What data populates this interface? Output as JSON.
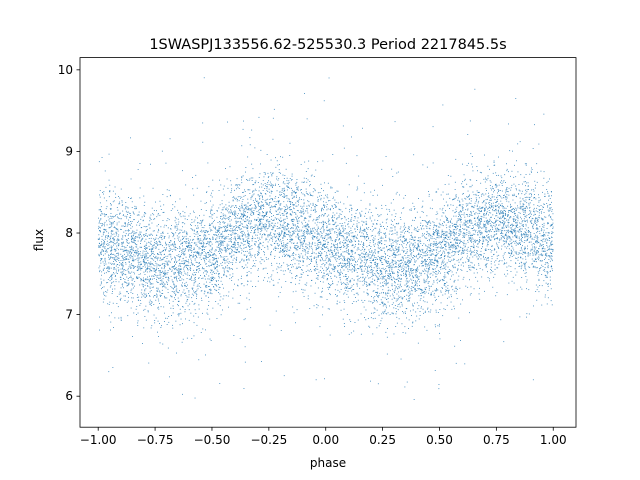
{
  "chart_data": {
    "type": "scatter",
    "title": "1SWASPJ133556.62-525530.3 Period 2217845.5s",
    "xlabel": "phase",
    "ylabel": "flux",
    "xlim": [
      -1.08,
      1.1
    ],
    "ylim": [
      5.62,
      10.15
    ],
    "xticks": [
      -1.0,
      -0.75,
      -0.5,
      -0.25,
      0.0,
      0.25,
      0.5,
      0.75,
      1.0
    ],
    "xtick_labels": [
      "−1.00",
      "−0.75",
      "−0.50",
      "−0.25",
      "0.00",
      "0.25",
      "0.50",
      "0.75",
      "1.00"
    ],
    "yticks": [
      6,
      7,
      8,
      9,
      10
    ],
    "ytick_labels": [
      "6",
      "7",
      "8",
      "9",
      "10"
    ],
    "grid": false,
    "legend": "none",
    "marker_color": "#1f77b4",
    "point_count": 9000,
    "profile": {
      "description_of_trend_in_data_units": "phase-folded light curve, two cycles over [-1,1]",
      "phase": [
        -1.0,
        -0.875,
        -0.75,
        -0.625,
        -0.5,
        -0.375,
        -0.25,
        -0.125,
        0.0,
        0.125,
        0.25,
        0.375,
        0.5,
        0.625,
        0.75,
        0.875,
        1.0
      ],
      "mean_flux": [
        7.85,
        7.75,
        7.62,
        7.6,
        7.75,
        8.05,
        8.15,
        8.05,
        7.9,
        7.75,
        7.6,
        7.6,
        7.75,
        8.05,
        8.15,
        8.05,
        7.85
      ],
      "scatter_sigma": 0.33,
      "flux_min": 5.95,
      "flux_max": 9.95
    }
  }
}
